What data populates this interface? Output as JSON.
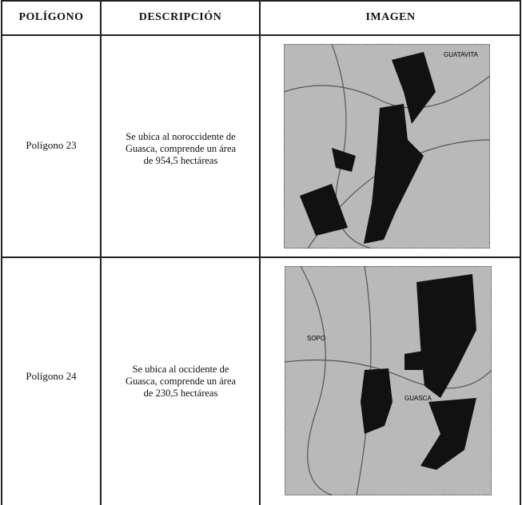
{
  "table": {
    "header": [
      "POLÍGONO",
      "DESCRIPCIÓN",
      "IMAGEN"
    ],
    "rows": [
      {
        "name": "Polígono 23",
        "description": "Se ubica al noroccidente de Guasca, comprende un área de 954,5 hectáreas",
        "map_labels": [
          "GUATAVITA"
        ]
      },
      {
        "name": "Polígono 24",
        "description": "Se ubica al occidente de Guasca, comprende un área de 230,5 hectáreas",
        "map_labels": [
          "SOPO",
          "GUASCA"
        ]
      }
    ]
  }
}
